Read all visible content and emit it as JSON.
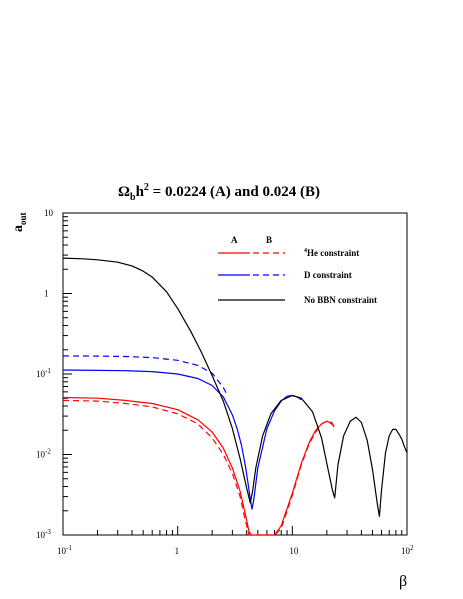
{
  "chart_data": {
    "type": "line",
    "title": {
      "main": "Ω",
      "sub1": "b",
      "main2": "h",
      "sup": "2",
      "rest": " = 0.0224 (A) and 0.024 (B)"
    },
    "xlabel": "β",
    "ylabel": {
      "main": "a",
      "sub": "out"
    },
    "x_scale": "log",
    "y_scale": "log",
    "xlim": [
      0.1,
      100
    ],
    "ylim": [
      0.001,
      10
    ],
    "grid": false,
    "legend_position": "top-right",
    "x_ticks": [
      {
        "base": "10",
        "exp": "-1"
      },
      {
        "base": "1",
        "exp": ""
      },
      {
        "base": "10",
        "exp": ""
      },
      {
        "base": "10",
        "exp": "2"
      }
    ],
    "y_ticks": [
      {
        "base": "10",
        "exp": "-3"
      },
      {
        "base": "10",
        "exp": "-2"
      },
      {
        "base": "10",
        "exp": "-1"
      },
      {
        "base": "1",
        "exp": ""
      },
      {
        "base": "10",
        "exp": ""
      }
    ],
    "legend": {
      "header_a": "A",
      "header_b": "B",
      "entries": [
        {
          "label": "He constraint",
          "sup": "4",
          "color": "#ff0000",
          "a": "He-A",
          "b": "He-B"
        },
        {
          "label": "D constraint",
          "sup": "",
          "color": "#0000ff",
          "a": "D-A",
          "b": "D-B"
        },
        {
          "label": "No BBN constraint",
          "sup": "",
          "color": "#000000",
          "a": "NoBBN",
          "b": null
        }
      ]
    },
    "series": [
      {
        "name": "He-A",
        "color": "#ff0000",
        "dash": false,
        "x": [
          0.1,
          0.2,
          0.35,
          0.6,
          1.0,
          1.5,
          2.0,
          2.5,
          3.0,
          3.5,
          3.9,
          4.2,
          4.4,
          4.6,
          5.0,
          6.0,
          7.0,
          8.0,
          10.0,
          12.0,
          14.0,
          16.0,
          18.0,
          20.0,
          22.0,
          23.2
        ],
        "y": [
          0.051,
          0.05,
          0.047,
          0.043,
          0.036,
          0.027,
          0.019,
          0.012,
          0.0068,
          0.0035,
          0.0018,
          0.0011,
          0.001,
          0.001,
          0.001,
          0.001,
          0.001,
          0.0013,
          0.0033,
          0.0078,
          0.014,
          0.02,
          0.024,
          0.026,
          0.024,
          0.022
        ]
      },
      {
        "name": "He-B",
        "color": "#ff0000",
        "dash": true,
        "x": [
          0.1,
          0.2,
          0.35,
          0.6,
          1.0,
          1.5,
          2.0,
          2.5,
          3.0,
          3.5,
          3.9,
          4.2,
          4.4,
          4.6,
          5.0,
          6.0,
          7.0,
          8.0,
          10.0,
          12.0,
          14.0,
          16.0,
          18.0,
          20.0,
          22.0,
          23.2
        ],
        "y": [
          0.047,
          0.046,
          0.043,
          0.039,
          0.032,
          0.024,
          0.016,
          0.01,
          0.0058,
          0.003,
          0.0015,
          0.001,
          0.001,
          0.001,
          0.001,
          0.001,
          0.001,
          0.0012,
          0.0031,
          0.0075,
          0.0135,
          0.019,
          0.024,
          0.026,
          0.025,
          0.022
        ]
      },
      {
        "name": "D-A",
        "color": "#0000ff",
        "dash": false,
        "x": [
          0.1,
          0.2,
          0.35,
          0.6,
          1.0,
          1.5,
          2.0,
          2.5,
          3.0,
          3.3,
          3.6,
          3.9,
          4.1,
          4.3,
          4.45,
          4.6,
          5.0,
          6.0,
          7.0,
          8.0,
          9.0,
          10.0,
          11.0,
          12.0
        ],
        "y": [
          0.112,
          0.111,
          0.11,
          0.107,
          0.1,
          0.088,
          0.072,
          0.052,
          0.031,
          0.021,
          0.013,
          0.0072,
          0.0045,
          0.0028,
          0.0021,
          0.0027,
          0.0068,
          0.021,
          0.035,
          0.046,
          0.053,
          0.054,
          0.052,
          0.048
        ]
      },
      {
        "name": "D-B",
        "color": "#0000ff",
        "dash": true,
        "x": [
          0.1,
          0.2,
          0.35,
          0.6,
          1.0,
          1.5,
          2.0,
          2.5,
          2.7
        ],
        "y": [
          0.168,
          0.167,
          0.165,
          0.16,
          0.148,
          0.128,
          0.102,
          0.068,
          0.055
        ]
      },
      {
        "name": "NoBBN",
        "color": "#000000",
        "dash": false,
        "x": [
          0.1,
          0.15,
          0.2,
          0.3,
          0.4,
          0.5,
          0.6,
          0.8,
          1.0,
          1.3,
          1.6,
          2.0,
          2.5,
          3.0,
          3.5,
          4.0,
          4.3,
          4.5,
          4.8,
          5.5,
          6.5,
          8.0,
          10.0,
          12.0,
          15.0,
          18.0,
          20.5,
          22.5,
          23.4,
          25.0,
          28.0,
          32.0,
          36.0,
          40.0,
          45.0,
          50.0,
          55.0,
          57.5,
          60.0,
          65.0,
          70.0,
          75.0,
          80.0,
          85.0,
          90.0,
          95.0,
          100.0
        ],
        "y": [
          2.75,
          2.7,
          2.62,
          2.45,
          2.2,
          1.9,
          1.6,
          1.05,
          0.65,
          0.34,
          0.19,
          0.095,
          0.046,
          0.021,
          0.0089,
          0.0038,
          0.0025,
          0.0035,
          0.0068,
          0.017,
          0.032,
          0.047,
          0.054,
          0.05,
          0.034,
          0.016,
          0.0065,
          0.0035,
          0.0029,
          0.0075,
          0.017,
          0.026,
          0.029,
          0.025,
          0.015,
          0.0065,
          0.0025,
          0.0017,
          0.0037,
          0.0105,
          0.017,
          0.0205,
          0.0205,
          0.018,
          0.0155,
          0.0125,
          0.0105
        ]
      }
    ]
  }
}
